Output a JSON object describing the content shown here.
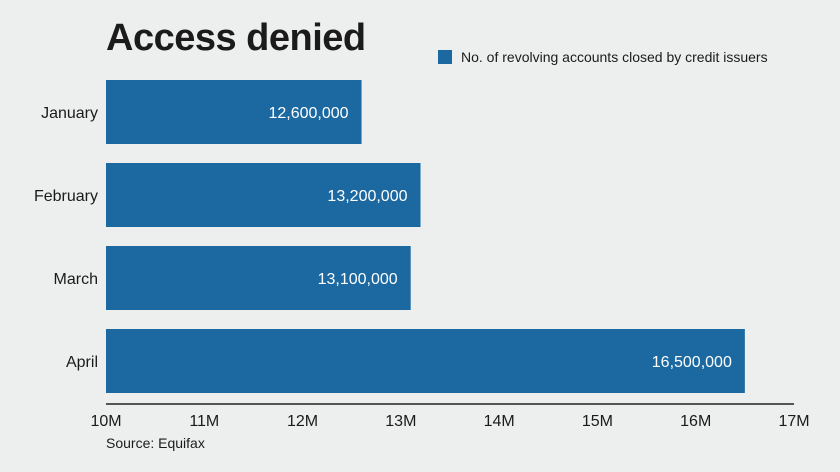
{
  "colors": {
    "bar": "#1c69a1",
    "background": "#edeeee",
    "axis": "#222222"
  },
  "source": "Source: Equifax",
  "chart_data": {
    "type": "bar",
    "orientation": "horizontal",
    "title": "Access denied",
    "categories": [
      "January",
      "February",
      "March",
      "April"
    ],
    "series": [
      {
        "name": "No. of revolving accounts closed by credit issuers",
        "values": [
          12600000,
          13200000,
          13100000,
          16500000
        ],
        "data_labels": [
          "12,600,000",
          "13,200,000",
          "13,100,000",
          "16,500,000"
        ]
      }
    ],
    "xlim": [
      10000000,
      17000000
    ],
    "xticks": [
      10000000,
      11000000,
      12000000,
      13000000,
      14000000,
      15000000,
      16000000,
      17000000
    ],
    "xtick_labels": [
      "10M",
      "11M",
      "12M",
      "13M",
      "14M",
      "15M",
      "16M",
      "17M"
    ],
    "xlabel": "",
    "ylabel": "",
    "grid": false,
    "legend_position": "top-right"
  }
}
